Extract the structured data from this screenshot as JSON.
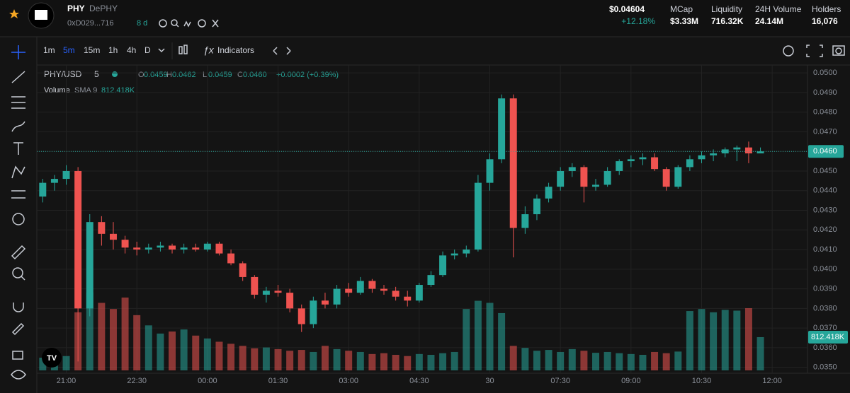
{
  "header": {
    "name": "PHY",
    "subtitle": "DePHY",
    "address": "0xD029...716",
    "age": "8 d",
    "price": "$0.04604",
    "change": "+12.18%",
    "stats": [
      {
        "label": "MCap",
        "value": "$3.33M"
      },
      {
        "label": "Liquidity",
        "value": "716.32K"
      },
      {
        "label": "24H Volume",
        "value": "24.14M"
      },
      {
        "label": "Holders",
        "value": "16,076"
      }
    ]
  },
  "toolbar": {
    "intervals": [
      "1m",
      "5m",
      "15m",
      "1h",
      "4h",
      "D"
    ],
    "active_interval": 1,
    "indicators": "Indicators"
  },
  "legend": {
    "symbol": "PHY/USD",
    "interval": "5",
    "ohlc": [
      {
        "key": "O",
        "value": "0.0459"
      },
      {
        "key": "H",
        "value": "0.0462"
      },
      {
        "key": "L",
        "value": "0.0459"
      },
      {
        "key": "C",
        "value": "0.0460"
      }
    ],
    "change": "+0.0002 (+0.39%)",
    "volume": "Volume",
    "sma": "SMA 9",
    "sma_value": "812.418K"
  },
  "chart_data": {
    "type": "candlestick",
    "up_color": "#26a69a",
    "down_color": "#ef5350",
    "grid": true,
    "candles": [
      [
        0.0437,
        0.0446,
        0.0434,
        0.0444
      ],
      [
        0.0444,
        0.0448,
        0.044,
        0.0446
      ],
      [
        0.0446,
        0.0453,
        0.0443,
        0.045
      ],
      [
        0.045,
        0.0452,
        0.0353,
        0.038
      ],
      [
        0.038,
        0.0428,
        0.0376,
        0.0424
      ],
      [
        0.0424,
        0.0427,
        0.0412,
        0.0418
      ],
      [
        0.0418,
        0.0424,
        0.041,
        0.0415
      ],
      [
        0.0415,
        0.0417,
        0.0408,
        0.0411
      ],
      [
        0.0411,
        0.0414,
        0.0407,
        0.041
      ],
      [
        0.041,
        0.0413,
        0.0408,
        0.0411
      ],
      [
        0.0411,
        0.0414,
        0.0409,
        0.0412
      ],
      [
        0.0412,
        0.0413,
        0.0408,
        0.041
      ],
      [
        0.041,
        0.0413,
        0.0408,
        0.0411
      ],
      [
        0.0411,
        0.0413,
        0.0409,
        0.041
      ],
      [
        0.041,
        0.0414,
        0.0409,
        0.0413
      ],
      [
        0.0413,
        0.0414,
        0.0407,
        0.0408
      ],
      [
        0.0408,
        0.041,
        0.0402,
        0.0403
      ],
      [
        0.0403,
        0.0404,
        0.0394,
        0.0396
      ],
      [
        0.0396,
        0.0397,
        0.0385,
        0.0387
      ],
      [
        0.0387,
        0.0391,
        0.0383,
        0.0389
      ],
      [
        0.0389,
        0.0392,
        0.0386,
        0.0388
      ],
      [
        0.0388,
        0.039,
        0.0378,
        0.038
      ],
      [
        0.038,
        0.0382,
        0.0368,
        0.0372
      ],
      [
        0.0372,
        0.0386,
        0.037,
        0.0384
      ],
      [
        0.0384,
        0.0388,
        0.038,
        0.0382
      ],
      [
        0.0382,
        0.0392,
        0.038,
        0.039
      ],
      [
        0.039,
        0.0393,
        0.0386,
        0.0388
      ],
      [
        0.0388,
        0.0396,
        0.0387,
        0.0394
      ],
      [
        0.0394,
        0.0395,
        0.0388,
        0.039
      ],
      [
        0.039,
        0.0392,
        0.0387,
        0.0389
      ],
      [
        0.0389,
        0.0391,
        0.0384,
        0.0386
      ],
      [
        0.0386,
        0.0389,
        0.0381,
        0.0384
      ],
      [
        0.0384,
        0.0393,
        0.0383,
        0.0392
      ],
      [
        0.0392,
        0.0399,
        0.0391,
        0.0397
      ],
      [
        0.0397,
        0.0409,
        0.0396,
        0.0407
      ],
      [
        0.0407,
        0.041,
        0.0405,
        0.0408
      ],
      [
        0.0408,
        0.0412,
        0.0406,
        0.041
      ],
      [
        0.041,
        0.0448,
        0.0409,
        0.0444
      ],
      [
        0.0444,
        0.0459,
        0.044,
        0.0456
      ],
      [
        0.0456,
        0.0489,
        0.0454,
        0.0487
      ],
      [
        0.0487,
        0.0489,
        0.0406,
        0.0421
      ],
      [
        0.0421,
        0.0432,
        0.0418,
        0.0428
      ],
      [
        0.0428,
        0.0438,
        0.0425,
        0.0436
      ],
      [
        0.0436,
        0.0444,
        0.0434,
        0.0442
      ],
      [
        0.0442,
        0.0452,
        0.044,
        0.045
      ],
      [
        0.045,
        0.0454,
        0.0447,
        0.0452
      ],
      [
        0.0452,
        0.0453,
        0.0434,
        0.0442
      ],
      [
        0.0442,
        0.0446,
        0.044,
        0.0443
      ],
      [
        0.0443,
        0.0452,
        0.0442,
        0.045
      ],
      [
        0.045,
        0.0456,
        0.0448,
        0.0455
      ],
      [
        0.0455,
        0.0458,
        0.0452,
        0.0456
      ],
      [
        0.0456,
        0.0459,
        0.0453,
        0.0457
      ],
      [
        0.0457,
        0.0459,
        0.045,
        0.0451
      ],
      [
        0.0451,
        0.0452,
        0.044,
        0.0442
      ],
      [
        0.0442,
        0.0453,
        0.0441,
        0.0452
      ],
      [
        0.0452,
        0.0458,
        0.045,
        0.0456
      ],
      [
        0.0456,
        0.046,
        0.0454,
        0.0458
      ],
      [
        0.0458,
        0.0461,
        0.0455,
        0.0459
      ],
      [
        0.0459,
        0.0462,
        0.0457,
        0.0461
      ],
      [
        0.0461,
        0.0463,
        0.0455,
        0.0462
      ],
      [
        0.0462,
        0.0465,
        0.0454,
        0.0459
      ],
      [
        0.0459,
        0.0462,
        0.0459,
        0.046
      ]
    ],
    "volumes": [
      310,
      280,
      350,
      1420,
      1900,
      1650,
      1500,
      1780,
      1350,
      1100,
      900,
      950,
      1000,
      850,
      780,
      700,
      650,
      600,
      540,
      560,
      520,
      480,
      500,
      450,
      600,
      520,
      480,
      450,
      400,
      420,
      380,
      350,
      400,
      380,
      420,
      450,
      1500,
      1700,
      1650,
      1400,
      600,
      550,
      480,
      500,
      450,
      520,
      480,
      430,
      450,
      420,
      400,
      380,
      450,
      420,
      460,
      1450,
      1500,
      1420,
      1480,
      1460,
      1520,
      812.418
    ],
    "volume_last_label": "812.418K",
    "xlim": [
      -0.5,
      65
    ],
    "xticks": [
      {
        "value": 2,
        "label": "21:00"
      },
      {
        "value": 8,
        "label": "22:30"
      },
      {
        "value": 14,
        "label": "00:00"
      },
      {
        "value": 20,
        "label": "01:30"
      },
      {
        "value": 26,
        "label": "03:00"
      },
      {
        "value": 32,
        "label": "04:30"
      },
      {
        "value": 38,
        "label": "30"
      },
      {
        "value": 44,
        "label": "07:30"
      },
      {
        "value": 50,
        "label": "09:00"
      },
      {
        "value": 56,
        "label": "10:30"
      },
      {
        "value": 62,
        "label": "12:00"
      }
    ],
    "ylim": [
      0.0347,
      0.0504
    ],
    "yticks": [
      {
        "value": 0.035,
        "label": "0.0350"
      },
      {
        "value": 0.036,
        "label": "0.0360"
      },
      {
        "value": 0.037,
        "label": "0.0370"
      },
      {
        "value": 0.038,
        "label": "0.0380"
      },
      {
        "value": 0.039,
        "label": "0.0390"
      },
      {
        "value": 0.04,
        "label": "0.0400"
      },
      {
        "value": 0.041,
        "label": "0.0410"
      },
      {
        "value": 0.042,
        "label": "0.0420"
      },
      {
        "value": 0.043,
        "label": "0.0430"
      },
      {
        "value": 0.044,
        "label": "0.0440"
      },
      {
        "value": 0.045,
        "label": "0.0450"
      },
      {
        "value": 0.046,
        "label": "0.0460"
      },
      {
        "value": 0.047,
        "label": "0.0470"
      },
      {
        "value": 0.048,
        "label": "0.0480"
      },
      {
        "value": 0.049,
        "label": "0.0490"
      },
      {
        "value": 0.05,
        "label": "0.0500"
      }
    ],
    "last_price": {
      "value": 0.046,
      "label": "0.0460"
    }
  }
}
